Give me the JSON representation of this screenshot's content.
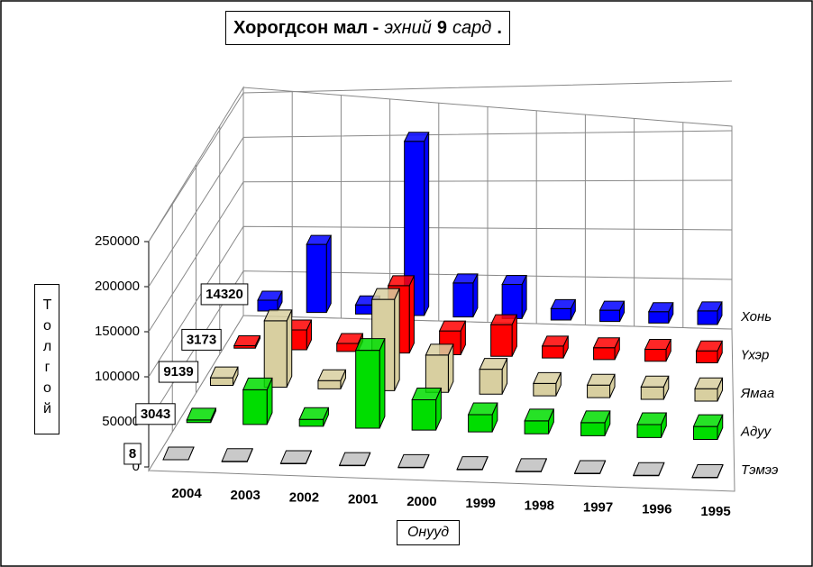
{
  "chart_data": {
    "type": "bar3d",
    "title": [
      "Хорогдсон мал -",
      "эхний",
      "9",
      "сард",
      "."
    ],
    "y_label": "Толгой",
    "x_label": "Онууд",
    "categories": [
      "2004",
      "2003",
      "2002",
      "2001",
      "2000",
      "1999",
      "1998",
      "1997",
      "1996",
      "1995"
    ],
    "series": [
      {
        "name": "Хонь",
        "color": "#0000ff",
        "values": [
          14320,
          90000,
          12000,
          230000,
          45000,
          45000,
          15000,
          15000,
          15000,
          18000
        ]
      },
      {
        "name": "Үхэр",
        "color": "#ff0000",
        "values": [
          3173,
          25000,
          10000,
          85000,
          30000,
          40000,
          15000,
          15000,
          15000,
          15000
        ]
      },
      {
        "name": "Ямаа",
        "color": "#d8cfa0",
        "values": [
          9139,
          80000,
          10000,
          110000,
          45000,
          30000,
          15000,
          15000,
          15000,
          15000
        ]
      },
      {
        "name": "Адуу",
        "color": "#00dd00",
        "values": [
          3043,
          40000,
          8000,
          90000,
          35000,
          20000,
          15000,
          15000,
          15000,
          15000
        ]
      },
      {
        "name": "Тэмээ",
        "color": "#c0c0c0",
        "values": [
          8,
          500,
          500,
          500,
          500,
          500,
          500,
          500,
          500,
          500
        ]
      }
    ],
    "data_labels_category": 0,
    "ylim": [
      0,
      250000
    ],
    "yticks": [
      0,
      50000,
      100000,
      150000,
      200000,
      250000
    ],
    "grid": true
  }
}
